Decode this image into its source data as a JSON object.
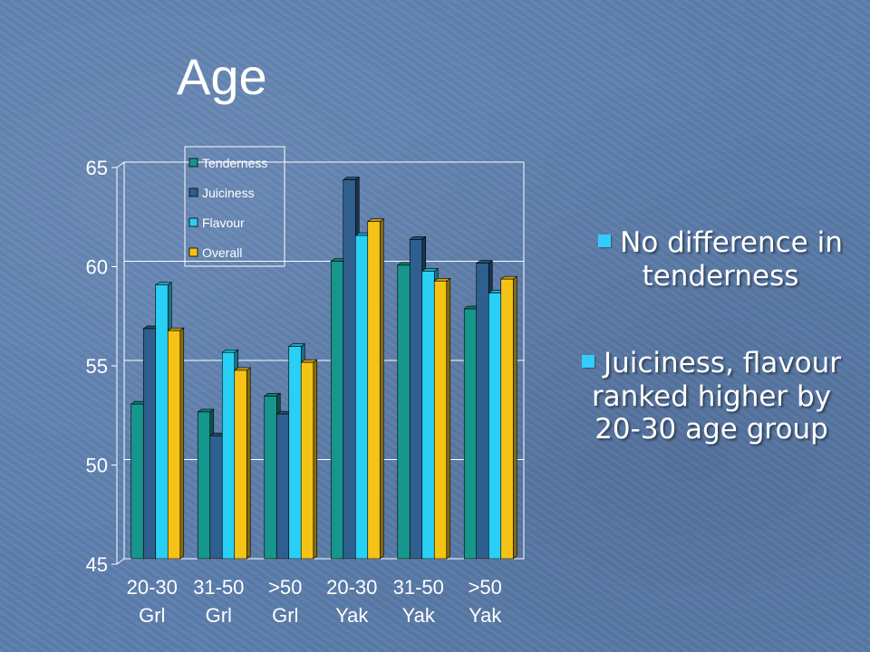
{
  "slide": {
    "title": "Age",
    "bullets": [
      "No difference in tenderness",
      "Juiciness, flavour ranked higher by 20-30 age group"
    ]
  },
  "colors": {
    "Tenderness": "#16968c",
    "Juiciness": "#2f5f8f",
    "Flavour": "#29d0f5",
    "Overall": "#f4c316",
    "bullet": "#33ccff"
  },
  "chart_data": {
    "type": "bar",
    "categories": [
      "20-30 Grl",
      "31-50 Grl",
      ">50 Grl",
      "20-30 Yak",
      "31-50 Yak",
      ">50 Yak"
    ],
    "category_lines": [
      [
        "20-30",
        "Grl"
      ],
      [
        "31-50",
        "Grl"
      ],
      [
        ">50",
        "Grl"
      ],
      [
        "20-30",
        "Yak"
      ],
      [
        "31-50",
        "Yak"
      ],
      [
        ">50",
        "Yak"
      ]
    ],
    "series": [
      {
        "name": "Tenderness",
        "values": [
          52.8,
          52.4,
          53.2,
          60.0,
          59.8,
          57.6
        ]
      },
      {
        "name": "Juiciness",
        "values": [
          56.6,
          51.2,
          52.3,
          64.1,
          61.1,
          59.9
        ]
      },
      {
        "name": "Flavour",
        "values": [
          58.8,
          55.4,
          55.7,
          61.3,
          59.5,
          58.4
        ]
      },
      {
        "name": "Overall",
        "values": [
          56.5,
          54.5,
          54.9,
          62.0,
          59.0,
          59.1
        ]
      }
    ],
    "ylim": [
      45,
      65
    ],
    "yticks": [
      45,
      50,
      55,
      60,
      65
    ],
    "grid": true,
    "legend": "top-left"
  }
}
